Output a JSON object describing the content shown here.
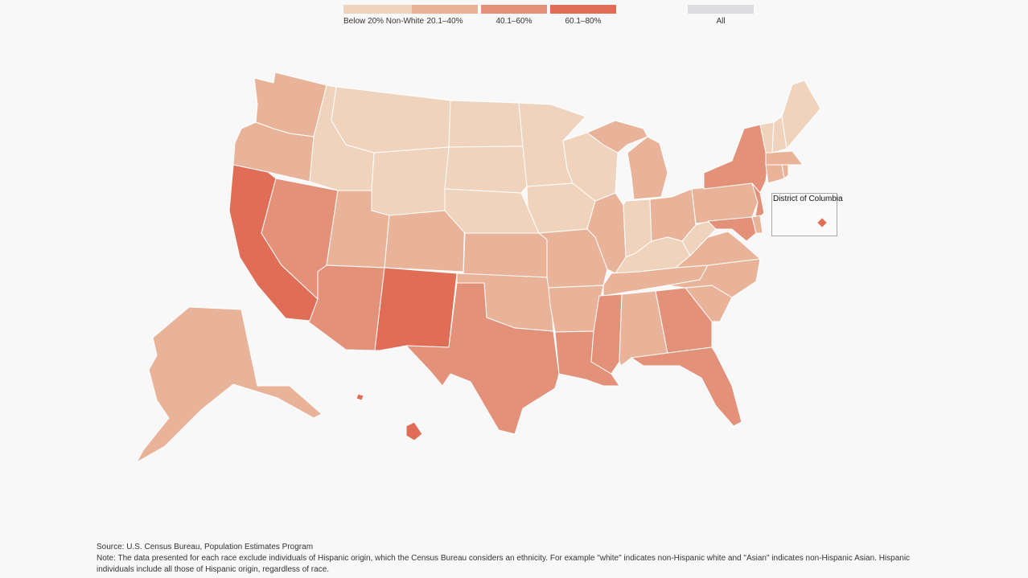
{
  "legend": {
    "items": [
      {
        "label": "Below 20% Non-White",
        "color": "#efd3bd"
      },
      {
        "label": "20.1–40%",
        "color": "#e9b39a"
      },
      {
        "label": "40.1–60%",
        "color": "#e4917a"
      },
      {
        "label": "60.1–80%",
        "color": "#e06e56"
      }
    ],
    "all": {
      "label": "All",
      "color": "#dcdce0"
    }
  },
  "dc_inset": {
    "label": "District of Columbia",
    "bucket": 3
  },
  "states": {
    "WA": 1,
    "OR": 1,
    "CA": 3,
    "NV": 2,
    "ID": 0,
    "MT": 0,
    "WY": 0,
    "UT": 1,
    "AZ": 2,
    "NM": 3,
    "CO": 1,
    "ND": 0,
    "SD": 0,
    "NE": 0,
    "KS": 1,
    "OK": 1,
    "TX": 2,
    "MN": 0,
    "IA": 0,
    "MO": 1,
    "AR": 1,
    "LA": 2,
    "WI": 0,
    "IL": 1,
    "MS": 2,
    "MI": 1,
    "IN": 0,
    "OH": 1,
    "KY": 0,
    "TN": 1,
    "AL": 1,
    "GA": 2,
    "FL": 2,
    "SC": 1,
    "NC": 1,
    "VA": 1,
    "WV": 0,
    "PA": 1,
    "NY": 2,
    "NJ": 2,
    "DE": 1,
    "MD": 2,
    "CT": 1,
    "RI": 1,
    "MA": 1,
    "VT": 0,
    "NH": 0,
    "ME": 0,
    "AK": 1,
    "HI": 3
  },
  "footer": {
    "source": "Source: U.S. Census Bureau, Population Estimates Program",
    "note": "Note: The data presented for each race exclude individuals of Hispanic origin, which the Census Bureau considers an ethnicity. For example \"white\" indicates non-Hispanic white and \"Asian\" indicates non-Hispanic Asian. Hispanic individuals include all those of Hispanic origin, regardless of race."
  }
}
